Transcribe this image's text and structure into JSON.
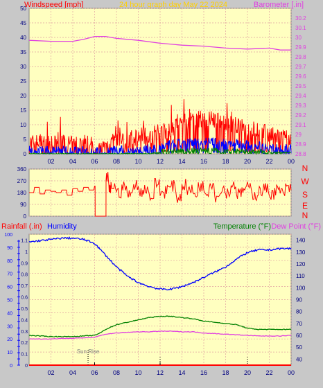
{
  "page": {
    "title": "24 hour graph day   May 22 2024",
    "colors": {
      "background": "#c8c8c8",
      "plot_background": "#ffffc0",
      "grid": "#e0a0a0",
      "wind": "#ff0000",
      "wind_avg": "#0000ff",
      "wind_min": "#008000",
      "barometer": "#e040e0",
      "direction": "#ff0000",
      "humidity": "#0000ff",
      "temperature": "#008000",
      "dew_point": "#e040e0",
      "rain": "#ff0000"
    },
    "x_ticks": [
      "02",
      "04",
      "06",
      "08",
      "10",
      "12",
      "14",
      "16",
      "18",
      "20",
      "22",
      "00"
    ]
  },
  "chart_data": [
    {
      "type": "line",
      "title": "24 hour graph day   May 22 2024",
      "ylabel": "Windspeed [mph]",
      "y2label": "Barometer [.in]",
      "xlim": [
        0,
        24
      ],
      "ylim": [
        0,
        50
      ],
      "y2lim": [
        28.8,
        30.3
      ],
      "y_ticks": [
        "0",
        "5",
        "10",
        "15",
        "20",
        "25",
        "30",
        "35",
        "40",
        "45",
        "50"
      ],
      "y2_ticks": [
        "28.8",
        "28.9",
        "29",
        "29.1",
        "29.2",
        "29.3",
        "29.4",
        "29.5",
        "29.6",
        "29.7",
        "29.8",
        "29.9",
        "30",
        "30.1",
        "30.2"
      ],
      "series": [
        {
          "name": "Wind gust",
          "axis": "left",
          "x": [
            0,
            1,
            2,
            3,
            4,
            5,
            6,
            6.5,
            7,
            8,
            9,
            10,
            11,
            12,
            13,
            14,
            15,
            16,
            17,
            18,
            19,
            20,
            21,
            22,
            23,
            24
          ],
          "y": [
            3,
            3.5,
            2.5,
            3,
            2.5,
            3.5,
            2,
            1,
            2.5,
            4,
            4,
            5.5,
            6,
            6.5,
            8,
            10,
            11,
            11.5,
            11,
            10.5,
            9,
            8,
            7.5,
            6,
            5,
            4.5
          ]
        },
        {
          "name": "Wind average",
          "axis": "left",
          "x": [
            0,
            2,
            4,
            6,
            8,
            10,
            12,
            13,
            14,
            16,
            18,
            20,
            22,
            24
          ],
          "y": [
            1,
            1,
            1,
            0.5,
            1,
            1,
            2,
            3,
            3.5,
            4,
            3.5,
            3,
            2,
            1.5
          ]
        },
        {
          "name": "Wind minimum",
          "axis": "left",
          "x": [
            0,
            4,
            8,
            11,
            12,
            14,
            16,
            18,
            20,
            22,
            24
          ],
          "y": [
            0,
            0,
            0,
            0,
            0.5,
            1,
            1.2,
            1,
            0.8,
            0.5,
            0.3
          ]
        },
        {
          "name": "Barometer",
          "axis": "right",
          "x": [
            0,
            2,
            4,
            5,
            6,
            7,
            8,
            10,
            12,
            14,
            16,
            18,
            20,
            22,
            23,
            24
          ],
          "y": [
            29.97,
            29.96,
            29.96,
            29.98,
            30.01,
            30.01,
            29.99,
            29.97,
            29.94,
            29.92,
            29.91,
            29.89,
            29.88,
            29.89,
            29.87,
            29.87
          ]
        }
      ]
    },
    {
      "type": "line",
      "xlim": [
        0,
        24
      ],
      "ylim": [
        0,
        360
      ],
      "y_ticks": [
        "0",
        "90",
        "180",
        "270",
        "360"
      ],
      "compass_labels": [
        "N",
        "W",
        "S",
        "E",
        "N"
      ],
      "series": [
        {
          "name": "Wind direction",
          "x": [
            0,
            0.5,
            1,
            1.5,
            2,
            2.5,
            3,
            3.5,
            4,
            4.5,
            5,
            5.5,
            6,
            6.05,
            6.3,
            7,
            7.05,
            7.3,
            7.5,
            8,
            8.5,
            9,
            9.5,
            10,
            10.5,
            11,
            11.5,
            12,
            12.5,
            13,
            13.5,
            14,
            14.5,
            15,
            15.5,
            16,
            16.5,
            17,
            17.5,
            18,
            18.5,
            19,
            19.5,
            20,
            20.5,
            21,
            21.5,
            22,
            22.5,
            23,
            23.5,
            24
          ],
          "y": [
            180,
            220,
            170,
            200,
            190,
            180,
            200,
            160,
            210,
            190,
            220,
            200,
            230,
            0,
            0,
            0,
            300,
            200,
            230,
            180,
            220,
            160,
            240,
            190,
            210,
            150,
            250,
            180,
            210,
            230,
            140,
            240,
            200,
            170,
            230,
            190,
            250,
            150,
            210,
            180,
            240,
            170,
            200,
            220,
            160,
            190,
            210,
            170,
            200,
            180,
            210,
            190
          ]
        }
      ]
    },
    {
      "type": "line",
      "xlim": [
        0,
        24
      ],
      "ylim": [
        0,
        100
      ],
      "y_ticks": [
        "0",
        "10",
        "20",
        "30",
        "40",
        "50",
        "60",
        "70",
        "80",
        "90",
        "100"
      ],
      "y_rain_ticks": [
        "0",
        "0.1",
        "0.2",
        "0.3",
        "0.4",
        "0.5",
        "0.6",
        "0.7",
        "0.8",
        "0.9",
        "1",
        "1.1"
      ],
      "y2lim": [
        35,
        145
      ],
      "y2_ticks": [
        "40",
        "50",
        "60",
        "70",
        "80",
        "90",
        "100",
        "110",
        "120",
        "130",
        "140"
      ],
      "labels": {
        "rain": "Rainfall (.in)",
        "humidity": "Humidity",
        "temperature": "Temperature (°F)",
        "dew_point": "Dew Point (°F)"
      },
      "annotations": [
        {
          "text": "Sun Rise",
          "x": 5.4
        }
      ],
      "series": [
        {
          "name": "Humidity",
          "axis": "left",
          "x": [
            0,
            1,
            2,
            3,
            4,
            5,
            6,
            7,
            8,
            9,
            10,
            11,
            12,
            13,
            14,
            15,
            16,
            17,
            18,
            19,
            20,
            21,
            22,
            23,
            24
          ],
          "y": [
            94,
            95,
            96,
            97,
            97,
            96,
            93,
            84,
            75,
            68,
            63,
            60,
            58,
            58,
            60,
            63,
            67,
            71,
            75,
            81,
            86,
            88,
            88,
            89,
            89
          ]
        },
        {
          "name": "Temperature",
          "axis": "right",
          "x": [
            0,
            1,
            2,
            3,
            4,
            5,
            6,
            6.5,
            7,
            8,
            9,
            10,
            11,
            12,
            13,
            14,
            15,
            16,
            17,
            18,
            19,
            20,
            21,
            22,
            23,
            24
          ],
          "y": [
            60,
            59.5,
            59,
            59,
            59,
            59.5,
            60,
            62,
            65,
            69,
            71,
            73,
            75,
            76,
            76,
            75,
            74,
            72,
            71,
            70,
            69,
            66,
            65,
            65,
            65,
            65
          ]
        },
        {
          "name": "Dew Point",
          "axis": "right",
          "x": [
            0,
            1,
            2,
            3,
            4,
            5,
            6,
            7,
            8,
            9,
            10,
            11,
            12,
            13,
            14,
            15,
            16,
            17,
            18,
            19,
            20,
            21,
            22,
            23,
            24
          ],
          "y": [
            57,
            57,
            57,
            57.5,
            57.5,
            58,
            58.5,
            61,
            62,
            62.5,
            63,
            63,
            63.5,
            63.5,
            63,
            63,
            62,
            61.5,
            61,
            60.5,
            60,
            59.5,
            59.5,
            59.5,
            60
          ]
        },
        {
          "name": "Rainfall",
          "axis": "left",
          "x": [
            0,
            24
          ],
          "y": [
            0,
            0
          ]
        }
      ]
    }
  ]
}
